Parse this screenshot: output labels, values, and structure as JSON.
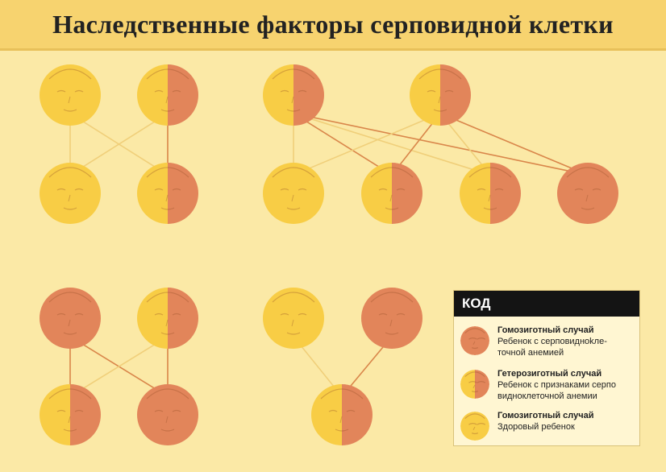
{
  "title": "Наследственные факторы серповидной клетки",
  "colors": {
    "background": "#fbe9a6",
    "title_band": "#f7d36f",
    "healthy": "#f8cd45",
    "sick": "#e2855a",
    "line_healthy": "#f0cf7a",
    "line_sick": "#d9864a",
    "legend_header": "#141414"
  },
  "families": [
    {
      "id": "family-1",
      "parents": [
        "healthy",
        "carrier"
      ],
      "children": [
        "healthy",
        "carrier"
      ],
      "links": [
        {
          "from": 0,
          "to": 0,
          "kind": "healthy"
        },
        {
          "from": 0,
          "to": 1,
          "kind": "healthy"
        },
        {
          "from": 1,
          "to": 0,
          "kind": "healthy"
        },
        {
          "from": 1,
          "to": 1,
          "kind": "sick"
        }
      ]
    },
    {
      "id": "family-2",
      "parents": [
        "carrier",
        "carrier"
      ],
      "children": [
        "healthy",
        "carrier",
        "carrier",
        "sick"
      ],
      "links": [
        {
          "from": 0,
          "to": 0,
          "kind": "healthy"
        },
        {
          "from": 0,
          "to": 1,
          "kind": "sick"
        },
        {
          "from": 0,
          "to": 2,
          "kind": "healthy"
        },
        {
          "from": 0,
          "to": 3,
          "kind": "sick"
        },
        {
          "from": 1,
          "to": 0,
          "kind": "healthy"
        },
        {
          "from": 1,
          "to": 1,
          "kind": "sick"
        },
        {
          "from": 1,
          "to": 2,
          "kind": "healthy"
        },
        {
          "from": 1,
          "to": 3,
          "kind": "sick"
        }
      ]
    },
    {
      "id": "family-3",
      "parents": [
        "sick",
        "carrier"
      ],
      "children": [
        "carrier",
        "sick"
      ],
      "links": [
        {
          "from": 0,
          "to": 0,
          "kind": "sick"
        },
        {
          "from": 0,
          "to": 1,
          "kind": "sick"
        },
        {
          "from": 1,
          "to": 0,
          "kind": "healthy"
        },
        {
          "from": 1,
          "to": 1,
          "kind": "sick"
        }
      ]
    },
    {
      "id": "family-4",
      "parents": [
        "healthy",
        "sick"
      ],
      "children": [
        "carrier"
      ],
      "links": [
        {
          "from": 0,
          "to": 0,
          "kind": "healthy"
        },
        {
          "from": 1,
          "to": 0,
          "kind": "sick"
        }
      ]
    }
  ],
  "legend": {
    "header": "КОД",
    "items": [
      {
        "kind": "sick",
        "title": "Гомозиготный случай",
        "lines": [
          "Ребенок с серповидноkле-",
          "точной анемией"
        ]
      },
      {
        "kind": "carrier",
        "title": "Гетерозиготный случай",
        "lines": [
          "Ребенок с признаками серпо",
          "видноклеточной анемии"
        ]
      },
      {
        "kind": "healthy",
        "title": "Гомозиготный случай",
        "lines": [
          "Здоровый ребенок"
        ]
      }
    ]
  }
}
